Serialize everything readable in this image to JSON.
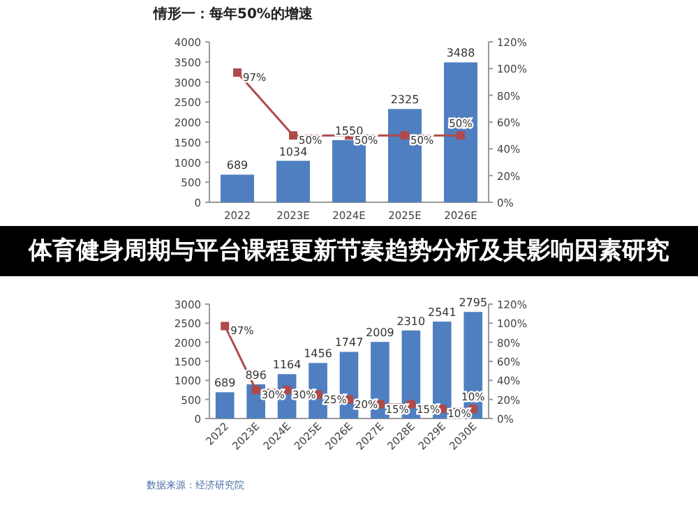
{
  "chart_data": [
    {
      "type": "bar",
      "title": "情形一：每年50%的增速",
      "annotations": [
        "体育健身周期与平台课程更新节奏趋势分析及其影响因素研究"
      ],
      "categories": [
        "2022",
        "2023E",
        "2024E",
        "2025E",
        "2026E"
      ],
      "ylim": [
        0,
        4000
      ],
      "yticks": [
        0,
        500,
        1000,
        1500,
        2000,
        2500,
        3000,
        3500,
        4000
      ],
      "y2lim": [
        0,
        120
      ],
      "y2ticks": [
        {
          "value": 0,
          "label": "0%"
        },
        {
          "value": 20,
          "label": "20%"
        },
        {
          "value": 40,
          "label": "40%"
        },
        {
          "value": 60,
          "label": "60%"
        },
        {
          "value": 80,
          "label": "80%"
        },
        {
          "value": 100,
          "label": "100%"
        },
        {
          "value": 120,
          "label": "120%"
        }
      ],
      "grid": false,
      "series": [
        {
          "color": "#4f7fc0",
          "values": [
            689,
            1034,
            1550,
            2325,
            3488
          ],
          "value_labels": [
            "689",
            "1034",
            "1550",
            "2325",
            "3488"
          ]
        },
        {
          "type": "line",
          "axis": "y2",
          "color": "#b04a4a",
          "marker": "square",
          "values": [
            97,
            50,
            50,
            50,
            50
          ],
          "value_labels": [
            "97%",
            "50%",
            "50%",
            "50%",
            "50%"
          ]
        }
      ]
    },
    {
      "type": "bar",
      "annotations": [
        "数据来源：经济研究院"
      ],
      "categories": [
        "2022",
        "2023E",
        "2024E",
        "2025E",
        "2026E",
        "2027E",
        "2028E",
        "2029E",
        "2030E"
      ],
      "ylim": [
        0,
        3000
      ],
      "yticks": [
        0,
        500,
        1000,
        1500,
        2000,
        2500,
        3000
      ],
      "y2lim": [
        0,
        120
      ],
      "y2ticks": [
        {
          "value": 0,
          "label": "0%"
        },
        {
          "value": 20,
          "label": "20%"
        },
        {
          "value": 40,
          "label": "40%"
        },
        {
          "value": 60,
          "label": "60%"
        },
        {
          "value": 80,
          "label": "80%"
        },
        {
          "value": 100,
          "label": "100%"
        },
        {
          "value": 120,
          "label": "120%"
        }
      ],
      "grid": false,
      "series": [
        {
          "color": "#4f7fc0",
          "values": [
            689,
            896,
            1164,
            1456,
            1747,
            2009,
            2310,
            2541,
            2795
          ],
          "value_labels": [
            "689",
            "896",
            "1164",
            "1456",
            "1747",
            "2009",
            "2310",
            "2541",
            "2795"
          ]
        },
        {
          "type": "line",
          "axis": "y2",
          "color": "#b04a4a",
          "marker": "square",
          "values": [
            97,
            30,
            30,
            25,
            20,
            15,
            15,
            10,
            10
          ],
          "value_labels": [
            "97%",
            "30%",
            "30%",
            "25%",
            "20%",
            "15%",
            "15%",
            "10%",
            "10%"
          ]
        }
      ]
    }
  ]
}
